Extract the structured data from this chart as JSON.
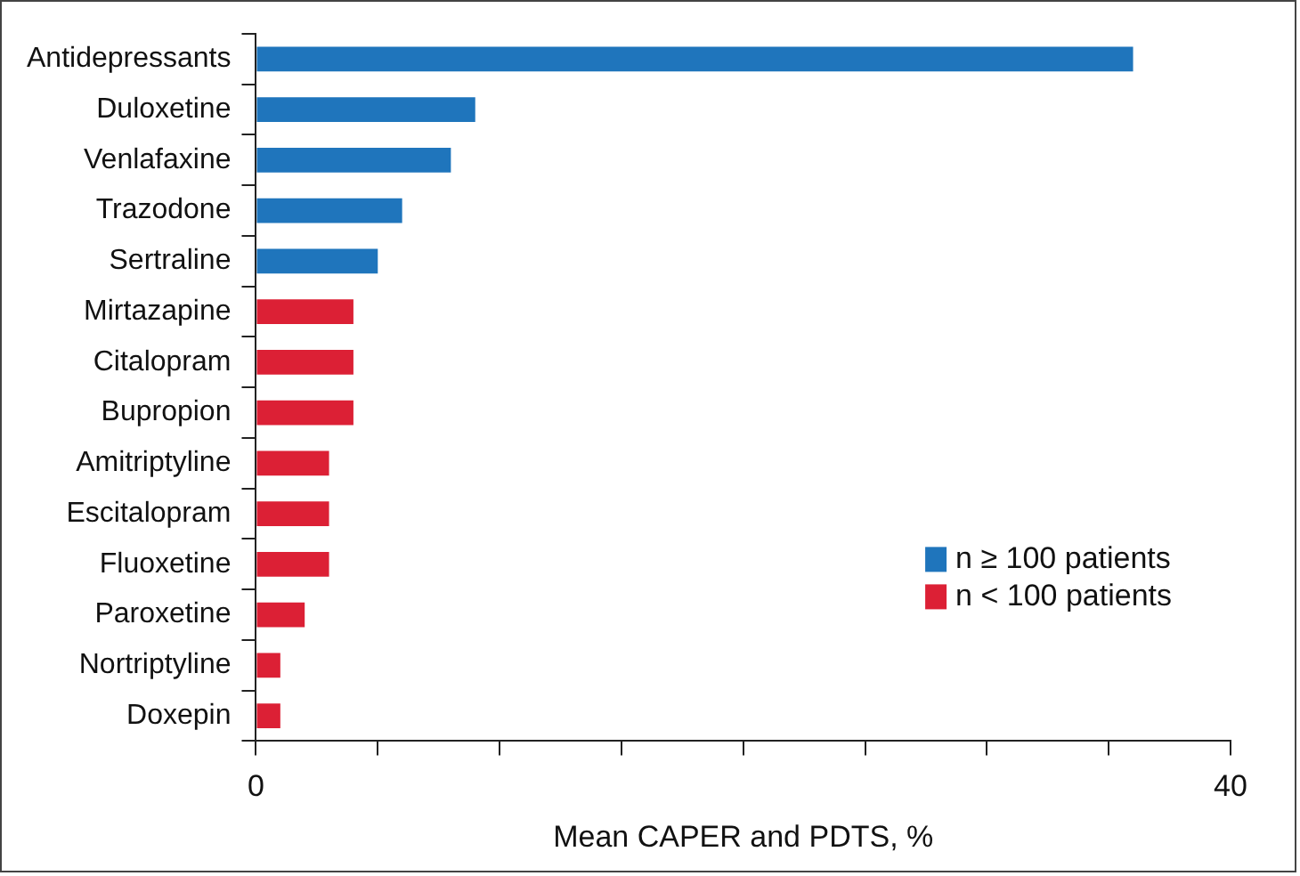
{
  "chart_data": {
    "type": "bar",
    "orientation": "horizontal",
    "stacked": true,
    "xlabel": "Mean CAPER and PDTS, %",
    "categories": [
      "Antidepressants",
      "Duloxetine",
      "Venlafaxine",
      "Trazodone",
      "Sertraline",
      "Mirtazapine",
      "Citalopram",
      "Bupropion",
      "Amitriptyline",
      "Escitalopram",
      "Fluoxetine",
      "Paroxetine",
      "Nortriptyline",
      "Doxepin"
    ],
    "series": [
      {
        "name": "n ≥ 100 patients",
        "color": "#1f75bc",
        "values": [
          36,
          9,
          8,
          6,
          5,
          null,
          null,
          null,
          null,
          null,
          null,
          null,
          null,
          null
        ]
      },
      {
        "name": "n < 100 patients",
        "color": "#dc2035",
        "values": [
          null,
          null,
          null,
          null,
          null,
          4,
          4,
          4,
          3,
          3,
          3,
          2,
          1,
          1
        ]
      }
    ],
    "xlim": [
      0,
      40
    ],
    "xticks": [
      0,
      {
        "value": 5,
        "label": null
      },
      {
        "value": 10,
        "label": null
      },
      {
        "value": 15,
        "label": null
      },
      {
        "value": 20,
        "label": null
      },
      {
        "value": 25,
        "label": null
      },
      {
        "value": 30,
        "label": null
      },
      {
        "value": 35,
        "label": null
      },
      40
    ],
    "grid": false,
    "legend": "bottom right"
  }
}
